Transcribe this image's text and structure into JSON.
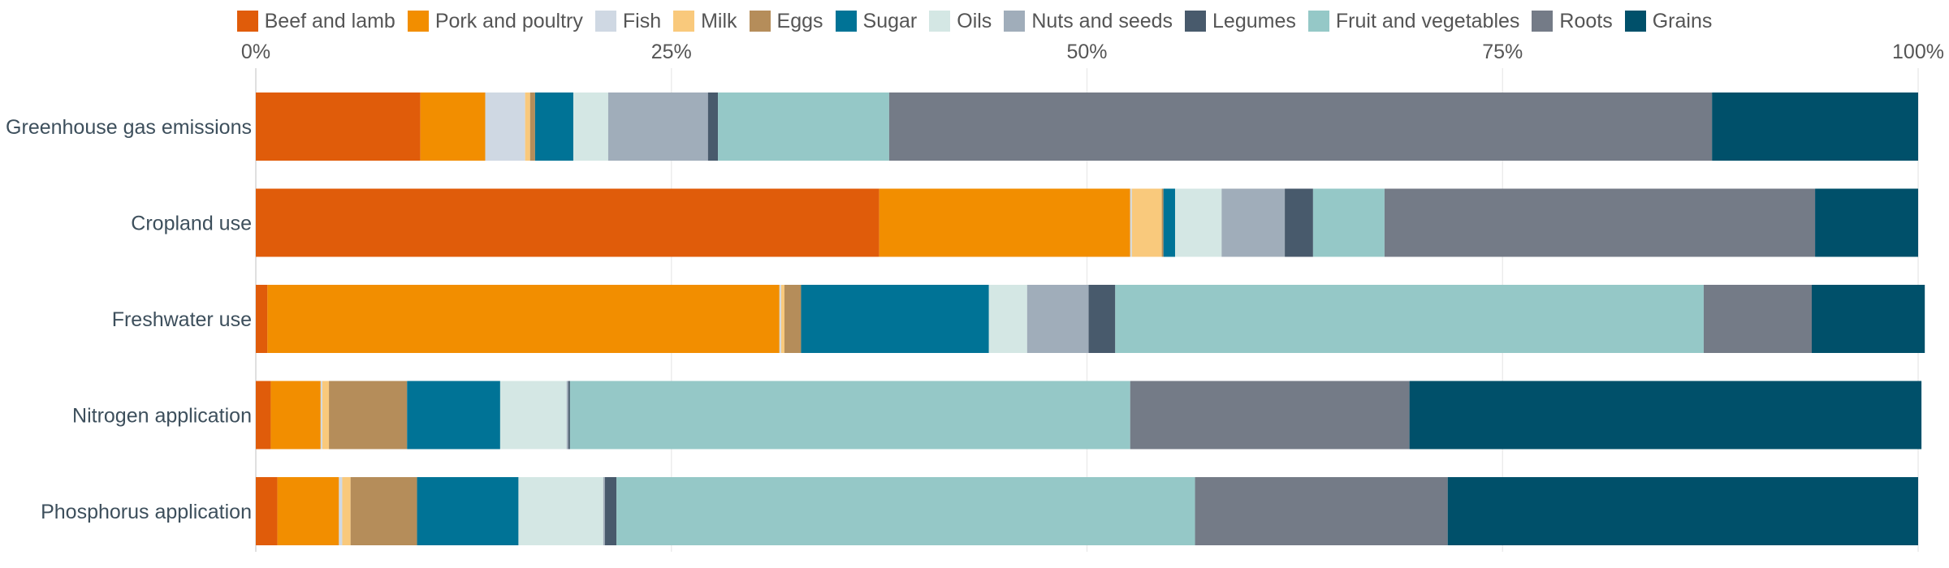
{
  "chart_data": {
    "type": "bar",
    "orientation": "horizontal",
    "stacked": true,
    "xlim": [
      0,
      100
    ],
    "x_ticks": [
      0,
      25,
      50,
      75,
      100
    ],
    "x_tick_labels": [
      "0%",
      "25%",
      "50%",
      "75%",
      "100%"
    ],
    "x_axis_position": "top",
    "legend_position": "top-center",
    "grid": true,
    "categories": [
      "Greenhouse gas emissions",
      "Cropland use",
      "Freshwater use",
      "Nitrogen application",
      "Phosphorus application"
    ],
    "series": [
      {
        "name": "Beef and lamb",
        "color": "#e05c0a",
        "values": [
          9.9,
          37.5,
          0.7,
          0.9,
          1.3
        ]
      },
      {
        "name": "Pork and poultry",
        "color": "#f28e00",
        "values": [
          3.9,
          15.1,
          30.8,
          3.0,
          3.7
        ]
      },
      {
        "name": "Fish",
        "color": "#cfd8e3",
        "values": [
          2.4,
          0.1,
          0.1,
          0.1,
          0.2
        ]
      },
      {
        "name": "Milk",
        "color": "#f9c97c",
        "values": [
          0.3,
          1.8,
          0.2,
          0.4,
          0.5
        ]
      },
      {
        "name": "Eggs",
        "color": "#b58d5a",
        "values": [
          0.3,
          0.1,
          1.0,
          4.7,
          4.0
        ]
      },
      {
        "name": "Sugar",
        "color": "#007396",
        "values": [
          2.3,
          0.7,
          11.3,
          5.6,
          6.1
        ]
      },
      {
        "name": "Oils",
        "color": "#d4e7e4",
        "values": [
          2.1,
          2.8,
          2.3,
          4.0,
          5.1
        ]
      },
      {
        "name": "Nuts and seeds",
        "color": "#a0adba",
        "values": [
          6.0,
          3.8,
          3.7,
          0.1,
          0.1
        ]
      },
      {
        "name": "Legumes",
        "color": "#485a6c",
        "values": [
          0.6,
          1.7,
          1.6,
          0.1,
          0.7
        ]
      },
      {
        "name": "Fruit and vegetables",
        "color": "#95c8c7",
        "values": [
          10.3,
          4.3,
          35.4,
          33.7,
          34.8
        ]
      },
      {
        "name": "Roots",
        "color": "#747b87",
        "values": [
          49.5,
          25.9,
          6.5,
          16.8,
          15.2
        ]
      },
      {
        "name": "Grains",
        "color": "#00506a",
        "values": [
          12.4,
          6.2,
          6.8,
          30.8,
          28.3
        ]
      }
    ]
  }
}
